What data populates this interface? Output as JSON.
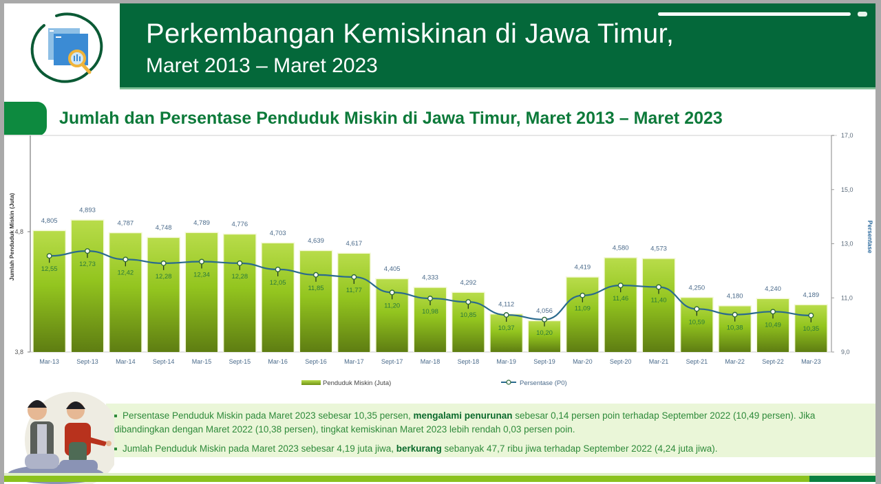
{
  "header": {
    "title_line1": "Perkembangan Kemiskinan di Jawa Timur,",
    "title_line2": "Maret 2013 – Maret 2023",
    "logo_icon": "chart-magnifier-icon",
    "colors": {
      "band": "#04683a",
      "accent": "#0d8a3f"
    }
  },
  "section": {
    "title": "Jumlah dan Persentase Penduduk Miskin di Jawa Timur, Maret 2013 – Maret 2023"
  },
  "chart_data": {
    "type": "bar+line",
    "title": "Jumlah dan Persentase Penduduk Miskin di Jawa Timur, Maret 2013 – Maret 2023",
    "categories": [
      "Mar-13",
      "Sept-13",
      "Mar-14",
      "Sept-14",
      "Mar-15",
      "Sept-15",
      "Mar-16",
      "Sept-16",
      "Mar-17",
      "Sept-17",
      "Mar-18",
      "Sept-18",
      "Mar-19",
      "Sept-19",
      "Mar-20",
      "Sept-20",
      "Mar-21",
      "Sept-21",
      "Mar-22",
      "Sept-22",
      "Mar-23"
    ],
    "series": [
      {
        "name": "Penduduk Miskin (Juta)",
        "type": "bar",
        "axis": "left",
        "color": "#8cbf1a",
        "values": [
          4.805,
          4.893,
          4.787,
          4.748,
          4.789,
          4.776,
          4.703,
          4.639,
          4.617,
          4.405,
          4.333,
          4.292,
          4.112,
          4.056,
          4.419,
          4.58,
          4.573,
          4.25,
          4.18,
          4.24,
          4.189
        ],
        "labels": [
          "4,805",
          "4,893",
          "4,787",
          "4,748",
          "4,789",
          "4,776",
          "4,703",
          "4,639",
          "4,617",
          "4,405",
          "4,333",
          "4,292",
          "4,112",
          "4,056",
          "4,419",
          "4,580",
          "4,573",
          "4,250",
          "4,180",
          "4,240",
          "4,189"
        ]
      },
      {
        "name": "Persentase (P0)",
        "type": "line",
        "axis": "right",
        "color": "#2e6b9e",
        "values": [
          12.55,
          12.73,
          12.42,
          12.28,
          12.34,
          12.28,
          12.05,
          11.85,
          11.77,
          11.2,
          10.98,
          10.85,
          10.37,
          10.2,
          11.09,
          11.46,
          11.4,
          10.59,
          10.38,
          10.49,
          10.35
        ],
        "labels": [
          "12,55",
          "12,73",
          "12,42",
          "12,28",
          "12,34",
          "12,28",
          "12,05",
          "11,85",
          "11,77",
          "11,20",
          "10,98",
          "10,85",
          "10,37",
          "10,20",
          "11,09",
          "11,46",
          "11,40",
          "10,59",
          "10,38",
          "10,49",
          "10,35"
        ]
      }
    ],
    "ylabel_left": "Jumlah Penduduk Miskin (Juta)",
    "ylabel_right": "Persentase",
    "yticks_left": [
      "3,8",
      "4,8"
    ],
    "yticks_right": [
      "9,0",
      "11,0",
      "13,0",
      "15,0",
      "17,0"
    ],
    "ylim_left": [
      3.8,
      5.6
    ],
    "ylim_right": [
      9.0,
      17.0
    ],
    "grid": false,
    "legend_position": "bottom",
    "legend": [
      "Penduduk Miskin (Juta)",
      "Persentase (P0)"
    ]
  },
  "notes": {
    "bullet1_a": "Persentase Penduduk Miskin pada Maret 2023 sebesar 10,35 persen, ",
    "bullet1_bold": "mengalami penurunan",
    "bullet1_b": " sebesar 0,14 persen poin terhadap September 2022 (10,49 persen). Jika dibandingkan dengan Maret 2022 (10,38 persen), tingkat kemiskinan Maret 2023 lebih rendah 0,03 persen poin.",
    "bullet2_a": "Jumlah Penduduk Miskin pada Maret 2023 sebesar 4,19 juta jiwa, ",
    "bullet2_bold": "berkurang",
    "bullet2_b": " sebanyak 47,7 ribu jiwa terhadap September 2022 (4,24 juta jiwa)."
  },
  "illustration": "two-children-illustration"
}
